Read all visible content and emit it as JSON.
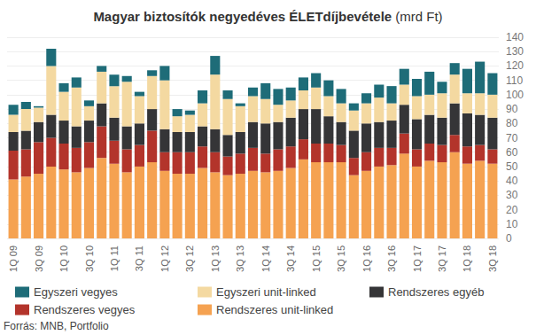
{
  "chart_data": {
    "type": "bar",
    "title": "Magyar biztosítók negyedéves ÉLETdíjbevétele (mrd Ft)",
    "annotation": "Forrás: MNB, Portfolio",
    "stacked": true,
    "grid": true,
    "legend": "bottom",
    "categories": [
      "1Q 09",
      null,
      "3Q 09",
      null,
      "1Q 10",
      null,
      "3Q 10",
      null,
      "1Q 11",
      null,
      "3Q 11",
      null,
      "1Q 12",
      null,
      "3Q 12",
      null,
      "1Q 13",
      null,
      "3Q 13",
      null,
      "1Q 14",
      null,
      "3Q 14",
      null,
      "1Q 15",
      null,
      "3Q 15",
      null,
      "1Q 16",
      null,
      "3Q 16",
      null,
      "1Q 17",
      null,
      "3Q 17",
      null,
      "1Q 18",
      null,
      "3Q 18"
    ],
    "ylim": [
      0,
      140
    ],
    "yticks": [
      0,
      10,
      20,
      30,
      40,
      50,
      60,
      70,
      80,
      90,
      100,
      110,
      120,
      130,
      140
    ],
    "series": [
      {
        "name": "Rendszeres unit-linked",
        "color": "#f5a251",
        "values": [
          41,
          43,
          45,
          50,
          48,
          46,
          49,
          56,
          52,
          46,
          50,
          53,
          47,
          45,
          45,
          49,
          46,
          44,
          45,
          47,
          46,
          47,
          49,
          55,
          53,
          53,
          53,
          44,
          47,
          50,
          51,
          59,
          50,
          54,
          53,
          60,
          52,
          54,
          52
        ]
      },
      {
        "name": "Rendszeres vegyes",
        "color": "#b3342b",
        "values": [
          20,
          19,
          22,
          20,
          18,
          17,
          18,
          22,
          16,
          16,
          15,
          22,
          13,
          15,
          15,
          15,
          14,
          13,
          14,
          16,
          13,
          15,
          15,
          14,
          13,
          13,
          12,
          12,
          13,
          13,
          12,
          14,
          12,
          12,
          12,
          12,
          12,
          11,
          10
        ]
      },
      {
        "name": "Rendszeres egyéb",
        "color": "#353537",
        "values": [
          13,
          13,
          14,
          16,
          16,
          15,
          15,
          16,
          16,
          16,
          15,
          15,
          16,
          14,
          14,
          14,
          16,
          15,
          15,
          18,
          21,
          19,
          20,
          21,
          24,
          19,
          16,
          19,
          20,
          18,
          19,
          20,
          21,
          20,
          19,
          22,
          23,
          21,
          22
        ]
      },
      {
        "name": "Egyszeri unit-linked",
        "color": "#f4d9a1",
        "values": [
          12,
          15,
          10,
          34,
          20,
          27,
          10,
          22,
          22,
          31,
          19,
          23,
          34,
          11,
          12,
          16,
          38,
          25,
          18,
          18,
          17,
          12,
          12,
          13,
          15,
          14,
          13,
          14,
          14,
          17,
          12,
          14,
          16,
          14,
          17,
          20,
          14,
          15,
          16
        ]
      },
      {
        "name": "Egyszeri vegyes",
        "color": "#1e6c78",
        "values": [
          7,
          5,
          1,
          12,
          6,
          7,
          4,
          4,
          8,
          4,
          3,
          4,
          10,
          5,
          3,
          9,
          13,
          6,
          2,
          6,
          11,
          11,
          9,
          9,
          10,
          11,
          10,
          5,
          7,
          9,
          12,
          11,
          12,
          16,
          8,
          8,
          17,
          22,
          15
        ]
      }
    ],
    "legend_order": [
      "Egyszeri vegyes",
      "Egyszeri unit-linked",
      "Rendszeres egyéb",
      "Rendszeres vegyes",
      "Rendszeres unit-linked"
    ]
  }
}
